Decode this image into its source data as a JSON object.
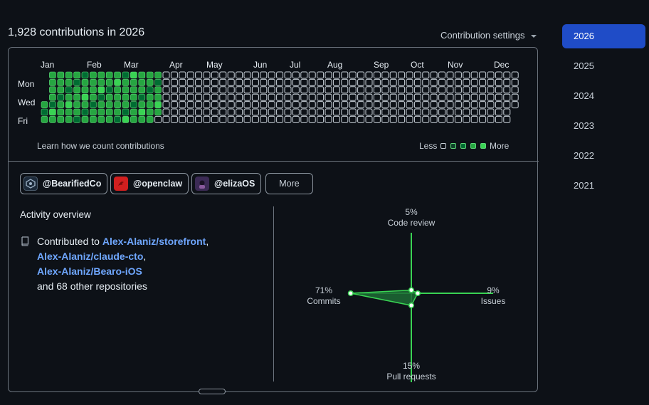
{
  "header": {
    "title": "1,928 contributions in 2026",
    "settings_label": "Contribution settings"
  },
  "years": [
    "2026",
    "2025",
    "2024",
    "2023",
    "2022",
    "2021"
  ],
  "selected_year": "2026",
  "calendar": {
    "months": [
      "Jan",
      "Feb",
      "Mar",
      "Apr",
      "May",
      "Jun",
      "Jul",
      "Aug",
      "Sep",
      "Oct",
      "Nov",
      "Dec"
    ],
    "day_labels": [
      "Mon",
      "Wed",
      "Fri"
    ],
    "learn_link": "Learn how we count contributions",
    "legend_less": "Less",
    "legend_more": "More",
    "level_colors": [
      "#0d1117",
      "#0e4429",
      "#006d32",
      "#26a641",
      "#39d353"
    ]
  },
  "organizations": [
    {
      "handle": "@BearifiedCo",
      "avatar": "bear-logo-icon",
      "avatar_color": "#1c2a3a"
    },
    {
      "handle": "@openclaw",
      "avatar": "claw-logo-icon",
      "avatar_color": "#d11f1f"
    },
    {
      "handle": "@elizaOS",
      "avatar": "eliza-avatar-icon",
      "avatar_color": "#3b2a55"
    }
  ],
  "more_button": "More",
  "activity": {
    "title": "Activity overview",
    "contributed_prefix": "Contributed to",
    "repos": [
      "Alex-Alaniz/storefront",
      "Alex-Alaniz/claude-cto",
      "Alex-Alaniz/Bearo-iOS"
    ],
    "other": "and 68 other repositories"
  },
  "radar": {
    "axes": [
      {
        "pct": "5%",
        "label": "Code review",
        "value": 5
      },
      {
        "pct": "9%",
        "label": "Issues",
        "value": 9
      },
      {
        "pct": "15%",
        "label": "Pull requests",
        "value": 15
      },
      {
        "pct": "71%",
        "label": "Commits",
        "value": 71
      }
    ],
    "color": "#39d353"
  }
}
